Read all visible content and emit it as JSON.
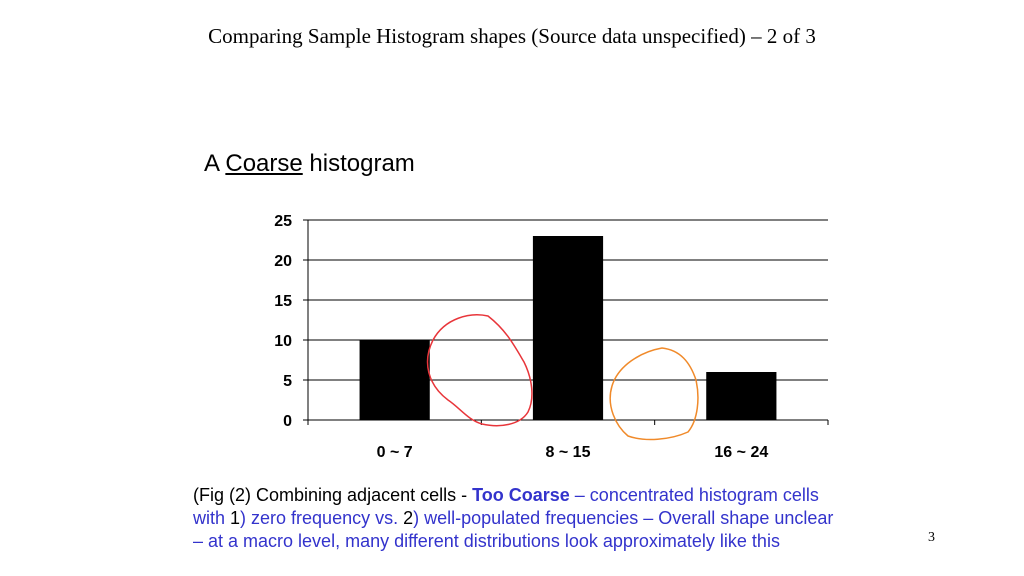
{
  "slide": {
    "title": "Comparing Sample Histogram shapes (Source data unspecified) – 2 of 3",
    "heading": {
      "prefix": "A",
      "emph": "Coarse",
      "suffix": "histogram"
    },
    "caption": {
      "line1_a": "(Fig (2) Combining adjacent cells - ",
      "line1_b": "Too Coarse",
      "line1_c": " – concentrated histogram cells",
      "line2_a": " with ",
      "line2_b": "1",
      "line2_c": ") zero frequency vs. ",
      "line2_d": "2",
      "line2_e": ") well-populated frequencies – Overall shape unclear",
      "line3": "– at a macro level, many different distributions look approximately like this"
    },
    "page_number": "3"
  },
  "colors": {
    "bar": "#000000",
    "annotation_red": "#e8353a",
    "annotation_orange": "#f08a2a",
    "caption_blue": "#3333cc"
  },
  "chart_data": {
    "type": "bar",
    "categories": [
      "0 ~ 7",
      "8 ~ 15",
      "16 ~ 24"
    ],
    "values": [
      10,
      23,
      6
    ],
    "ylim": [
      0,
      25
    ],
    "yticks": [
      0,
      5,
      10,
      15,
      20,
      25
    ],
    "grid": true,
    "legend": "none",
    "annotations": [
      "red hand-drawn loop over gap between first and second bar",
      "orange hand-drawn loop over gap between second and third bar"
    ]
  }
}
